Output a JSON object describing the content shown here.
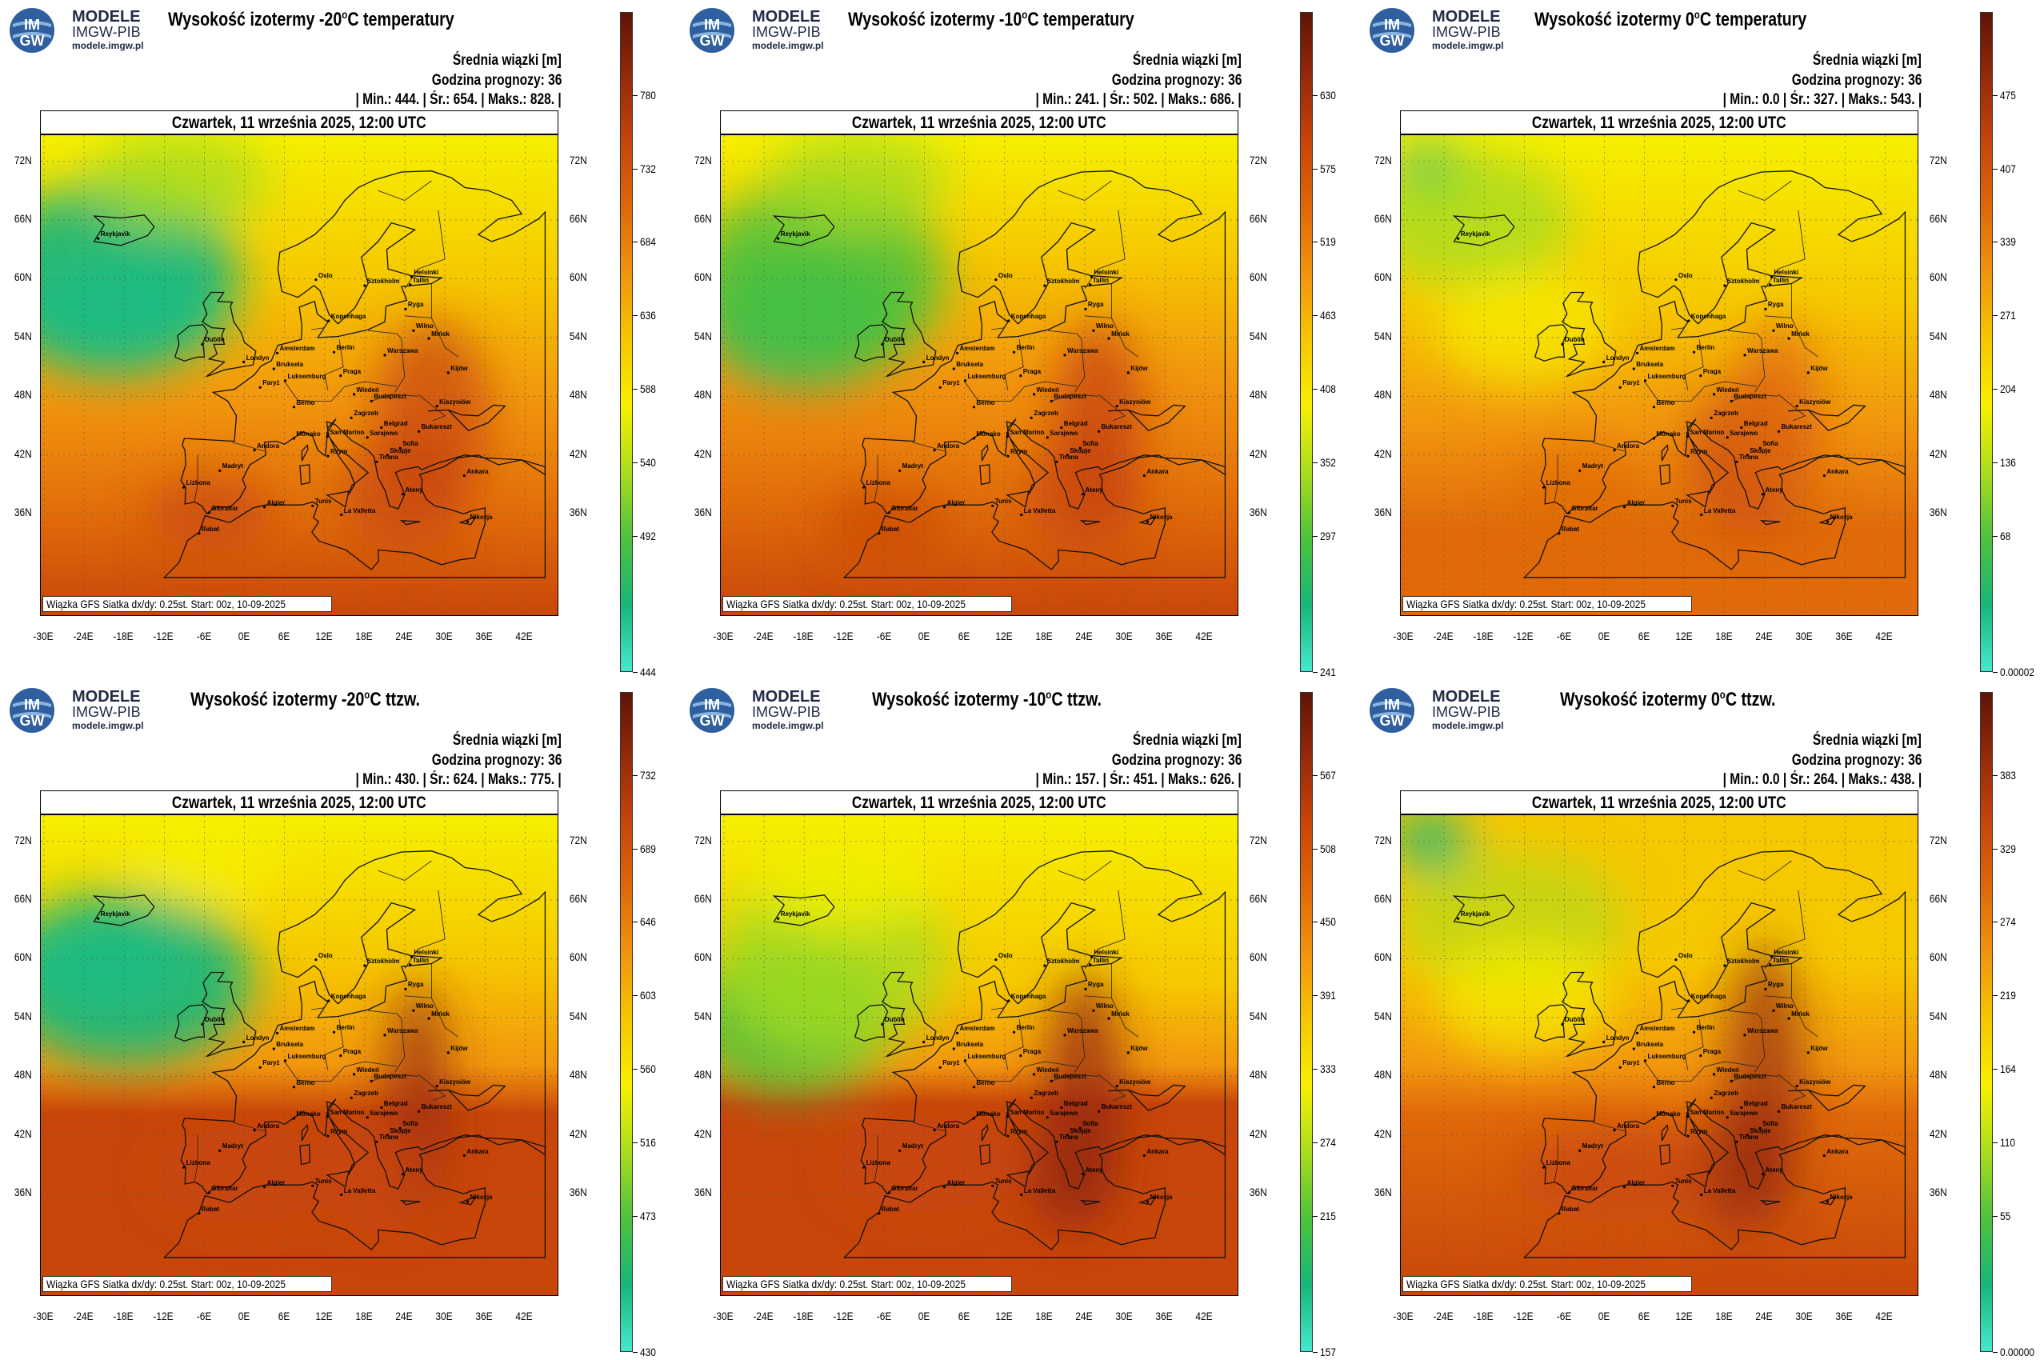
{
  "logo": {
    "badge_top": "IM",
    "badge_bottom": "GW",
    "line1": "MODELE",
    "line2": "IMGW-PIB",
    "line3": "modele.imgw.pl"
  },
  "common": {
    "info_label": "Średnia wiązki [m]",
    "forecast_hour": "Godzina prognozy: 36",
    "date": "Czwartek, 11 września 2025, 12:00 UTC",
    "footnote": "Wiązka GFS Siatka dx/dy: 0.25st. Start: 00z, 10-09-2025",
    "lat_labels": [
      "72N",
      "66N",
      "60N",
      "54N",
      "48N",
      "42N",
      "36N"
    ],
    "lon_labels": [
      "-30E",
      "-24E",
      "-18E",
      "-12E",
      "-6E",
      "0E",
      "6E",
      "12E",
      "18E",
      "24E",
      "30E",
      "36E",
      "42E"
    ],
    "cities": [
      "Oslo",
      "Sztokholm",
      "Helsinki",
      "Tallin",
      "Ryga",
      "Wilno",
      "Mińsk",
      "Kopenhaga",
      "Dublin",
      "Londyn",
      "Amsterdam",
      "Bruksela",
      "Berlin",
      "Warszawa",
      "Kijów",
      "Paryż",
      "Luksemburg",
      "Praga",
      "Wiedeń",
      "Berno",
      "Budapeszt",
      "Kiszyniów",
      "Zagrzeb",
      "Belgrad",
      "Bukareszt",
      "Andora",
      "Monako",
      "San Marino",
      "Sarajewo",
      "Sofia",
      "Skopje",
      "Tirana",
      "Madryt",
      "Lizbona",
      "Rzym",
      "Ateny",
      "Ankara",
      "Gibraltar",
      "Algier",
      "Tunis",
      "La Valletta",
      "Rabat",
      "Nikozja",
      "Reykjavik"
    ]
  },
  "colors": {
    "c0": "#46e8cc",
    "c1": "#18b67a",
    "c2": "#4cc23c",
    "c3": "#a8dc1e",
    "c4": "#f6f000",
    "c5": "#f6c800",
    "c6": "#f2960e",
    "c7": "#e06a0a",
    "c8": "#c8460a",
    "c9": "#962a0a",
    "c10": "#5e1406"
  },
  "panels": [
    {
      "title_pre": "Wysokość izotermy -20",
      "title_post": "C temperatury",
      "stats": "| Min.:  444. | Śr.:  654. | Maks.:  828. |",
      "colorbar": [
        "780",
        "732",
        "684",
        "636",
        "588",
        "540",
        "492",
        "444"
      ]
    },
    {
      "title_pre": "Wysokość izotermy -10",
      "title_post": "C temperatury",
      "stats": "| Min.:  241. | Śr.:  502. | Maks.:  686. |",
      "colorbar": [
        "630",
        "575",
        "519",
        "463",
        "408",
        "352",
        "297",
        "241"
      ]
    },
    {
      "title_pre": "Wysokość izotermy 0",
      "title_post": "C temperatury",
      "stats": "| Min.:  0.0 | Śr.:  327. | Maks.:  543. |",
      "colorbar": [
        "475",
        "407",
        "339",
        "271",
        "204",
        "136",
        "68",
        "0.00002"
      ]
    },
    {
      "title_pre": "Wysokość izotermy -20",
      "title_post": "C ttzw.",
      "stats": "| Min.:  430. | Śr.:  624. | Maks.:  775. |",
      "colorbar": [
        "732",
        "689",
        "646",
        "603",
        "560",
        "516",
        "473",
        "430"
      ]
    },
    {
      "title_pre": "Wysokość izotermy -10",
      "title_post": "C ttzw.",
      "stats": "| Min.:  157. | Śr.:  451. | Maks.:  626. |",
      "colorbar": [
        "567",
        "508",
        "450",
        "391",
        "333",
        "274",
        "215",
        "157"
      ]
    },
    {
      "title_pre": "Wysokość izotermy 0",
      "title_post": "C ttzw.",
      "stats": "| Min.:  0.0 | Śr.:  264. | Maks.:  438. |",
      "colorbar": [
        "383",
        "329",
        "274",
        "219",
        "164",
        "110",
        "55",
        "0.00000"
      ]
    }
  ],
  "deg_symbol": "o"
}
